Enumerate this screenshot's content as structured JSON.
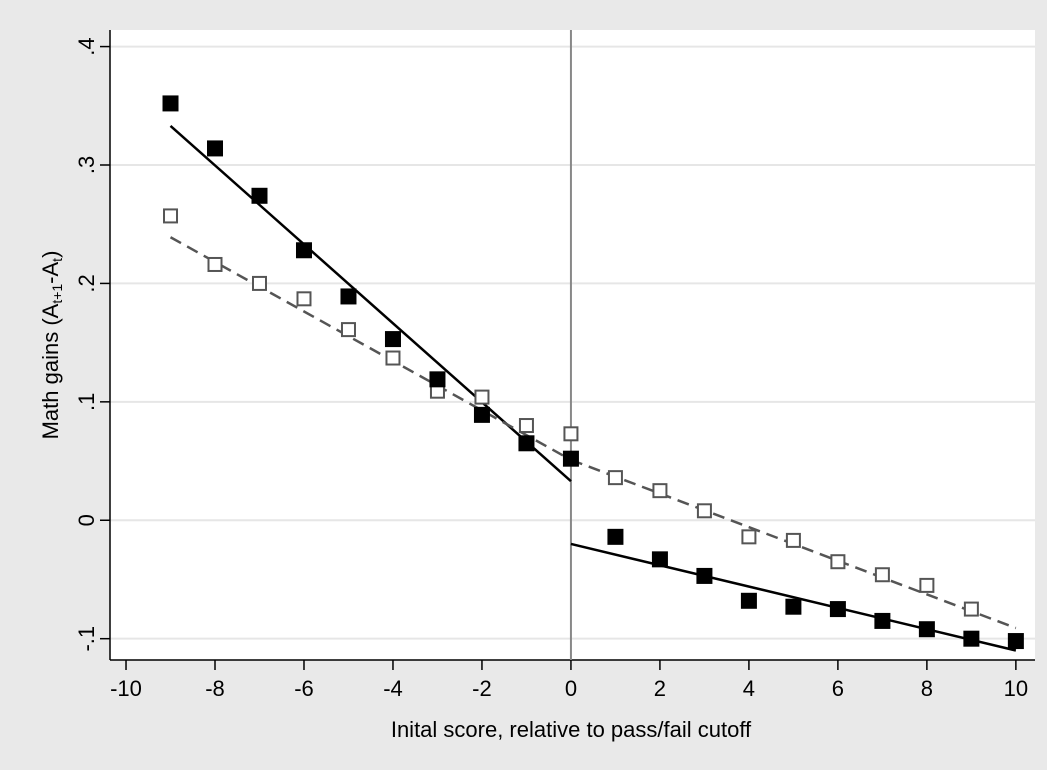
{
  "chart_data": {
    "type": "scatter",
    "x_label": "Inital score, relative to pass/fail cutoff",
    "y_label": [
      "Math gains (A",
      "t+1",
      "-A",
      "t",
      ")"
    ],
    "x": [
      -9,
      -8,
      -7,
      -6,
      -5,
      -4,
      -3,
      -2,
      -1,
      0,
      1,
      2,
      3,
      4,
      5,
      6,
      7,
      8,
      9,
      10
    ],
    "series": [
      {
        "color": "#000000",
        "marker": "filled-square",
        "values": [
          0.352,
          0.314,
          0.274,
          0.228,
          0.189,
          0.153,
          0.119,
          0.089,
          0.065,
          0.052,
          -0.014,
          -0.033,
          -0.047,
          -0.068,
          -0.073,
          -0.075,
          -0.085,
          -0.092,
          -0.1,
          -0.102
        ]
      },
      {
        "color": "#555555",
        "marker": "hollow-square",
        "values": [
          0.257,
          0.216,
          0.2,
          0.187,
          0.161,
          0.137,
          0.109,
          0.104,
          0.08,
          0.073,
          0.036,
          0.025,
          0.008,
          -0.014,
          -0.017,
          -0.035,
          -0.046,
          -0.055,
          -0.075,
          null
        ]
      }
    ],
    "fit_lines": [
      {
        "color": "#000000",
        "dash": "solid",
        "x": [
          -9,
          0
        ],
        "values": [
          0.333,
          0.033
        ]
      },
      {
        "color": "#000000",
        "dash": "solid",
        "x": [
          0,
          10
        ],
        "values": [
          -0.02,
          -0.11
        ]
      },
      {
        "color": "#555555",
        "dash": "dashed",
        "x": [
          -9,
          0
        ],
        "values": [
          0.239,
          0.051
        ]
      },
      {
        "color": "#555555",
        "dash": "dashed",
        "x": [
          0,
          10
        ],
        "values": [
          0.051,
          -0.091
        ]
      }
    ],
    "xline": 0,
    "xlim": [
      -10.36,
      10.43
    ],
    "ylim": [
      -0.118,
      0.414
    ],
    "xticks": [
      -10,
      -8,
      -6,
      -4,
      -2,
      0,
      2,
      4,
      6,
      8,
      10
    ],
    "yticks": [
      {
        "value": -0.1,
        "label": "-.1"
      },
      0,
      {
        "value": 0.1,
        "label": ".1"
      },
      {
        "value": 0.2,
        "label": ".2"
      },
      {
        "value": 0.3,
        "label": ".3"
      },
      {
        "value": 0.4,
        "label": ".4"
      }
    ],
    "grid": true
  }
}
